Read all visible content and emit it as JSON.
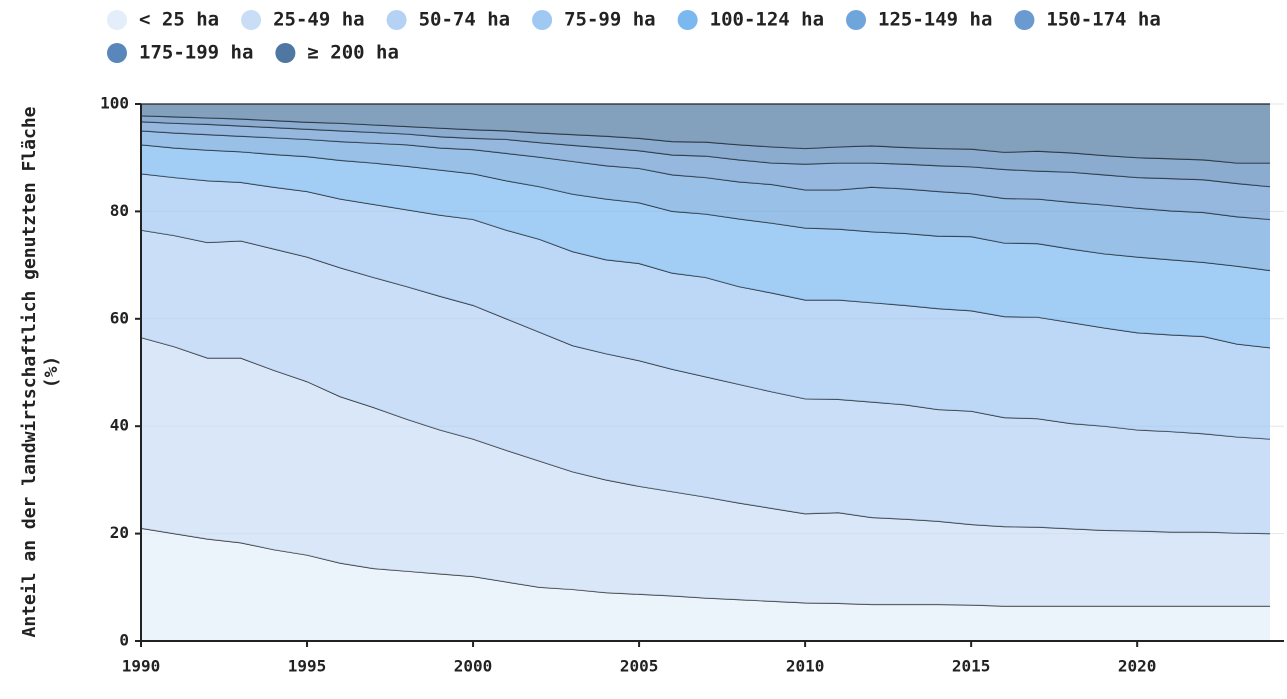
{
  "chart_data": {
    "type": "stacked_area",
    "ylabel": [
      "Anteil an der landwirtschaftlich genutzten Fläche",
      "(%)"
    ],
    "x": [
      1990,
      1991,
      1992,
      1993,
      1994,
      1995,
      1996,
      1997,
      1998,
      1999,
      2000,
      2001,
      2002,
      2003,
      2004,
      2005,
      2006,
      2007,
      2008,
      2009,
      2010,
      2011,
      2012,
      2013,
      2014,
      2015,
      2016,
      2017,
      2018,
      2019,
      2020,
      2021,
      2022,
      2023,
      2024
    ],
    "xlim": [
      1990,
      2024
    ],
    "xticks": [
      1990,
      1995,
      2000,
      2005,
      2010,
      2015,
      2020
    ],
    "ylim": [
      0,
      100
    ],
    "yticks": [
      0,
      20,
      40,
      60,
      80,
      100
    ],
    "grid": true,
    "legend": "top",
    "series": [
      {
        "name": "< 25 ha",
        "color": "#e3eefa",
        "values": [
          21,
          20,
          19,
          18.3,
          17,
          16,
          14.5,
          13.5,
          13,
          12.5,
          12,
          11,
          10,
          9.6,
          9,
          8.7,
          8.4,
          8,
          7.7,
          7.4,
          7.1,
          7,
          6.8,
          6.8,
          6.8,
          6.7,
          6.5,
          6.5,
          6.5,
          6.5,
          6.5,
          6.5,
          6.5,
          6.5,
          6.5
        ]
      },
      {
        "name": "25-49 ha",
        "color": "#c9ddf6",
        "values": [
          35.5,
          34.8,
          33.7,
          34.4,
          33.4,
          32.3,
          31,
          30,
          28.3,
          26.8,
          25.6,
          24.5,
          23.5,
          21.9,
          21,
          20.1,
          19.4,
          18.8,
          18,
          17.3,
          16.6,
          16.9,
          16.2,
          15.9,
          15.5,
          15,
          14.8,
          14.7,
          14.4,
          14.1,
          14,
          13.8,
          13.8,
          13.6,
          13.5
        ]
      },
      {
        "name": "50-74 ha",
        "color": "#b4d2f3",
        "values": [
          20,
          20.7,
          21.5,
          21.8,
          22.6,
          23.2,
          24,
          24.2,
          24.7,
          24.9,
          24.9,
          24.5,
          24,
          23.5,
          23.5,
          23.4,
          22.8,
          22.4,
          22.1,
          21.7,
          21.4,
          21.1,
          21.5,
          21.3,
          20.8,
          21.1,
          20.3,
          20.2,
          19.6,
          19.4,
          18.8,
          18.7,
          18.3,
          17.9,
          17.6
        ]
      },
      {
        "name": "75-99 ha",
        "color": "#9fc8f2",
        "values": [
          10.5,
          10.8,
          11.5,
          10.9,
          11.5,
          12.2,
          12.8,
          13.6,
          14.3,
          15.1,
          16,
          16.5,
          17.3,
          17.5,
          17.5,
          18.1,
          17.9,
          18.5,
          18.2,
          18.4,
          18.4,
          18.5,
          18.5,
          18.5,
          18.8,
          18.7,
          18.8,
          18.9,
          18.8,
          18.3,
          18.1,
          18,
          18.1,
          17.3,
          17
        ]
      },
      {
        "name": "100-124 ha",
        "color": "#7bb8ef",
        "values": [
          5.4,
          5.5,
          5.7,
          5.7,
          6.1,
          6.5,
          7.2,
          7.7,
          8.1,
          8.4,
          8.5,
          9.2,
          9.8,
          10.7,
          11.3,
          11.3,
          11.5,
          11.8,
          12.6,
          13,
          13.4,
          13.2,
          13.2,
          13.4,
          13.5,
          13.8,
          13.7,
          13.7,
          13.7,
          13.8,
          14.1,
          14,
          13.8,
          14.5,
          14.4
        ]
      },
      {
        "name": "125-149 ha",
        "color": "#6ea5db",
        "values": [
          2.6,
          2.8,
          2.9,
          2.9,
          3.1,
          3.2,
          3.5,
          3.7,
          4,
          4.1,
          4.5,
          5.1,
          5.5,
          6.1,
          6.2,
          6.4,
          6.8,
          6.8,
          6.9,
          7.2,
          7.1,
          7.3,
          8.3,
          8.3,
          8.3,
          8,
          8.3,
          8.3,
          8.7,
          9.1,
          9.1,
          9.1,
          9.3,
          9.2,
          9.5
        ]
      },
      {
        "name": "150-174 ha",
        "color": "#6a9ad0",
        "values": [
          1.7,
          1.8,
          1.9,
          1.9,
          1.9,
          1.9,
          2,
          2,
          2,
          2.1,
          2.1,
          2.6,
          2.7,
          3,
          3.3,
          3.3,
          3.7,
          4,
          4.1,
          4,
          4.8,
          5,
          4.5,
          4.6,
          4.8,
          5,
          5.4,
          5.2,
          5.6,
          5.6,
          5.7,
          6,
          6.1,
          6.2,
          6.1
        ]
      },
      {
        "name": "175-199 ha",
        "color": "#5a87bb",
        "values": [
          1.1,
          1.2,
          1.2,
          1.3,
          1.3,
          1.3,
          1.4,
          1.4,
          1.4,
          1.6,
          1.6,
          1.6,
          1.8,
          2,
          2.2,
          2.3,
          2.5,
          2.6,
          2.8,
          3,
          2.9,
          3,
          3.2,
          3.1,
          3.2,
          3.3,
          3.2,
          3.7,
          3.6,
          3.6,
          3.7,
          3.7,
          3.7,
          3.8,
          4.4
        ]
      },
      {
        "name": "≥ 200 ha",
        "color": "#4f77a1",
        "values": [
          2.2,
          2.4,
          2.6,
          2.8,
          3.1,
          3.4,
          3.6,
          3.9,
          4.2,
          4.5,
          4.8,
          5,
          5.4,
          5.7,
          6,
          6.4,
          7,
          7.1,
          7.6,
          8,
          8.3,
          8,
          7.8,
          8.1,
          8.3,
          8.4,
          9,
          8.8,
          9.1,
          9.6,
          10,
          10.2,
          10.4,
          11,
          11
        ]
      }
    ]
  }
}
